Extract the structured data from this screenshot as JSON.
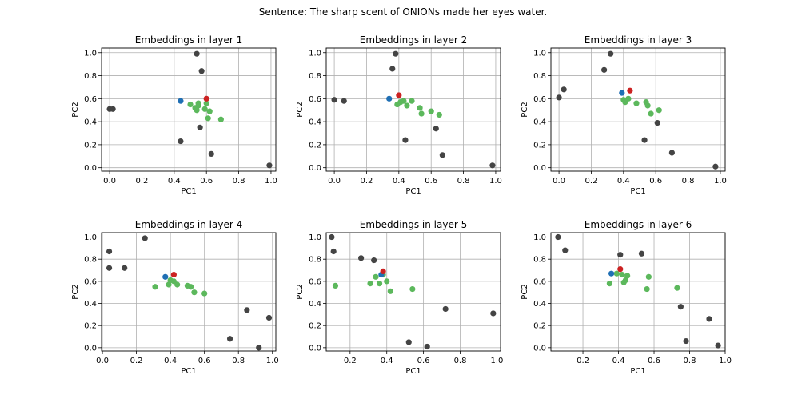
{
  "figure": {
    "title": "Sentence: The sharp scent of ONIONs made her eyes water."
  },
  "colors": {
    "gray": "#444444",
    "green": "#5cb85c",
    "blue": "#1f6fb4",
    "red": "#cc2222",
    "grid": "#b0b0b0"
  },
  "chart_data": [
    {
      "type": "scatter",
      "title": "Embeddings in layer 1",
      "xlabel": "PC1",
      "ylabel": "PC2",
      "xlim": [
        -0.05,
        1.03
      ],
      "ylim": [
        -0.03,
        1.04
      ],
      "xticks": [
        0.0,
        0.2,
        0.4,
        0.6,
        0.8,
        1.0
      ],
      "yticks": [
        0.0,
        0.2,
        0.4,
        0.6,
        0.8,
        1.0
      ],
      "grid": true,
      "series": [
        {
          "color": "gray",
          "points": [
            [
              0.0,
              0.51
            ],
            [
              0.02,
              0.51
            ],
            [
              0.54,
              0.99
            ],
            [
              0.57,
              0.84
            ],
            [
              0.44,
              0.23
            ],
            [
              0.56,
              0.35
            ],
            [
              0.63,
              0.12
            ],
            [
              0.99,
              0.02
            ]
          ]
        },
        {
          "color": "green",
          "points": [
            [
              0.5,
              0.55
            ],
            [
              0.53,
              0.52
            ],
            [
              0.54,
              0.5
            ],
            [
              0.55,
              0.56
            ],
            [
              0.55,
              0.54
            ],
            [
              0.59,
              0.51
            ],
            [
              0.6,
              0.56
            ],
            [
              0.62,
              0.49
            ],
            [
              0.61,
              0.43
            ],
            [
              0.69,
              0.42
            ]
          ]
        },
        {
          "color": "blue",
          "points": [
            [
              0.44,
              0.58
            ]
          ]
        },
        {
          "color": "red",
          "points": [
            [
              0.6,
              0.6
            ]
          ]
        }
      ]
    },
    {
      "type": "scatter",
      "title": "Embeddings in layer 2",
      "xlabel": "PC1",
      "ylabel": "PC2",
      "xlim": [
        -0.05,
        1.03
      ],
      "ylim": [
        -0.03,
        1.04
      ],
      "xticks": [
        0.0,
        0.2,
        0.4,
        0.6,
        0.8,
        1.0
      ],
      "yticks": [
        0.0,
        0.2,
        0.4,
        0.6,
        0.8,
        1.0
      ],
      "grid": true,
      "series": [
        {
          "color": "gray",
          "points": [
            [
              0.0,
              0.59
            ],
            [
              0.06,
              0.58
            ],
            [
              0.38,
              0.99
            ],
            [
              0.36,
              0.86
            ],
            [
              0.44,
              0.24
            ],
            [
              0.63,
              0.34
            ],
            [
              0.67,
              0.11
            ],
            [
              0.98,
              0.02
            ]
          ]
        },
        {
          "color": "green",
          "points": [
            [
              0.39,
              0.55
            ],
            [
              0.41,
              0.57
            ],
            [
              0.43,
              0.58
            ],
            [
              0.45,
              0.54
            ],
            [
              0.48,
              0.58
            ],
            [
              0.53,
              0.52
            ],
            [
              0.54,
              0.47
            ],
            [
              0.6,
              0.49
            ],
            [
              0.65,
              0.46
            ]
          ]
        },
        {
          "color": "blue",
          "points": [
            [
              0.34,
              0.6
            ]
          ]
        },
        {
          "color": "red",
          "points": [
            [
              0.4,
              0.63
            ]
          ]
        }
      ]
    },
    {
      "type": "scatter",
      "title": "Embeddings in layer 3",
      "xlabel": "PC1",
      "ylabel": "PC2",
      "xlim": [
        -0.05,
        1.03
      ],
      "ylim": [
        -0.03,
        1.04
      ],
      "xticks": [
        0.0,
        0.2,
        0.4,
        0.6,
        0.8,
        1.0
      ],
      "yticks": [
        0.0,
        0.2,
        0.4,
        0.6,
        0.8,
        1.0
      ],
      "grid": true,
      "series": [
        {
          "color": "gray",
          "points": [
            [
              0.0,
              0.61
            ],
            [
              0.03,
              0.68
            ],
            [
              0.32,
              0.99
            ],
            [
              0.28,
              0.85
            ],
            [
              0.53,
              0.24
            ],
            [
              0.61,
              0.39
            ],
            [
              0.7,
              0.13
            ],
            [
              0.97,
              0.01
            ]
          ]
        },
        {
          "color": "green",
          "points": [
            [
              0.4,
              0.59
            ],
            [
              0.41,
              0.57
            ],
            [
              0.43,
              0.6
            ],
            [
              0.48,
              0.56
            ],
            [
              0.54,
              0.57
            ],
            [
              0.55,
              0.54
            ],
            [
              0.57,
              0.47
            ],
            [
              0.62,
              0.5
            ]
          ]
        },
        {
          "color": "blue",
          "points": [
            [
              0.39,
              0.65
            ]
          ]
        },
        {
          "color": "red",
          "points": [
            [
              0.44,
              0.67
            ]
          ]
        }
      ]
    },
    {
      "type": "scatter",
      "title": "Embeddings in layer 4",
      "xlabel": "PC1",
      "ylabel": "PC2",
      "xlim": [
        -0.005,
        1.02
      ],
      "ylim": [
        -0.03,
        1.04
      ],
      "xticks": [
        0.0,
        0.2,
        0.4,
        0.6,
        0.8,
        1.0
      ],
      "yticks": [
        0.0,
        0.2,
        0.4,
        0.6,
        0.8,
        1.0
      ],
      "grid": true,
      "series": [
        {
          "color": "gray",
          "points": [
            [
              0.04,
              0.87
            ],
            [
              0.04,
              0.72
            ],
            [
              0.13,
              0.72
            ],
            [
              0.25,
              0.99
            ],
            [
              0.75,
              0.08
            ],
            [
              0.85,
              0.34
            ],
            [
              0.92,
              0.0
            ],
            [
              0.98,
              0.27
            ]
          ]
        },
        {
          "color": "green",
          "points": [
            [
              0.31,
              0.55
            ],
            [
              0.39,
              0.57
            ],
            [
              0.4,
              0.61
            ],
            [
              0.42,
              0.6
            ],
            [
              0.44,
              0.57
            ],
            [
              0.5,
              0.56
            ],
            [
              0.52,
              0.55
            ],
            [
              0.54,
              0.5
            ],
            [
              0.6,
              0.49
            ]
          ]
        },
        {
          "color": "blue",
          "points": [
            [
              0.37,
              0.64
            ]
          ]
        },
        {
          "color": "red",
          "points": [
            [
              0.42,
              0.66
            ]
          ]
        }
      ]
    },
    {
      "type": "scatter",
      "title": "Embeddings in layer 5",
      "xlabel": "PC1",
      "ylabel": "PC2",
      "xlim": [
        0.07,
        1.02
      ],
      "ylim": [
        -0.03,
        1.04
      ],
      "xticks": [
        0.2,
        0.4,
        0.6,
        0.8,
        1.0
      ],
      "yticks": [
        0.0,
        0.2,
        0.4,
        0.6,
        0.8,
        1.0
      ],
      "grid": true,
      "series": [
        {
          "color": "gray",
          "points": [
            [
              0.1,
              1.0
            ],
            [
              0.11,
              0.87
            ],
            [
              0.26,
              0.81
            ],
            [
              0.33,
              0.79
            ],
            [
              0.52,
              0.05
            ],
            [
              0.62,
              0.01
            ],
            [
              0.72,
              0.35
            ],
            [
              0.98,
              0.31
            ]
          ]
        },
        {
          "color": "green",
          "points": [
            [
              0.12,
              0.56
            ],
            [
              0.31,
              0.58
            ],
            [
              0.34,
              0.64
            ],
            [
              0.36,
              0.58
            ],
            [
              0.38,
              0.66
            ],
            [
              0.4,
              0.6
            ],
            [
              0.42,
              0.51
            ],
            [
              0.54,
              0.53
            ]
          ]
        },
        {
          "color": "blue",
          "points": [
            [
              0.37,
              0.66
            ]
          ]
        },
        {
          "color": "red",
          "points": [
            [
              0.38,
              0.69
            ]
          ]
        }
      ]
    },
    {
      "type": "scatter",
      "title": "Embeddings in layer 6",
      "xlabel": "PC1",
      "ylabel": "PC2",
      "xlim": [
        0.02,
        1.0
      ],
      "ylim": [
        -0.03,
        1.04
      ],
      "xticks": [
        0.2,
        0.4,
        0.6,
        0.8,
        1.0
      ],
      "yticks": [
        0.0,
        0.2,
        0.4,
        0.6,
        0.8,
        1.0
      ],
      "grid": true,
      "series": [
        {
          "color": "gray",
          "points": [
            [
              0.06,
              1.0
            ],
            [
              0.1,
              0.88
            ],
            [
              0.41,
              0.84
            ],
            [
              0.53,
              0.85
            ],
            [
              0.75,
              0.37
            ],
            [
              0.78,
              0.06
            ],
            [
              0.91,
              0.26
            ],
            [
              0.96,
              0.02
            ]
          ]
        },
        {
          "color": "green",
          "points": [
            [
              0.35,
              0.58
            ],
            [
              0.39,
              0.67
            ],
            [
              0.42,
              0.66
            ],
            [
              0.43,
              0.59
            ],
            [
              0.44,
              0.61
            ],
            [
              0.45,
              0.65
            ],
            [
              0.56,
              0.53
            ],
            [
              0.57,
              0.64
            ],
            [
              0.73,
              0.54
            ]
          ]
        },
        {
          "color": "blue",
          "points": [
            [
              0.36,
              0.67
            ]
          ]
        },
        {
          "color": "red",
          "points": [
            [
              0.41,
              0.71
            ]
          ]
        }
      ]
    }
  ]
}
